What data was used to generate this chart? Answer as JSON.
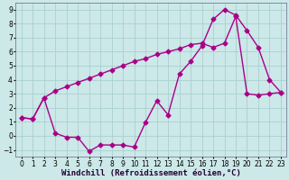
{
  "xlabel": "Windchill (Refroidissement éolien,°C)",
  "background_color": "#cce8e8",
  "grid_color": "#aad0d0",
  "line_color": "#aa0088",
  "xlim": [
    -0.5,
    23.5
  ],
  "ylim": [
    -1.5,
    9.5
  ],
  "xticks": [
    0,
    1,
    2,
    3,
    4,
    5,
    6,
    7,
    8,
    9,
    10,
    11,
    12,
    13,
    14,
    15,
    16,
    17,
    18,
    19,
    20,
    21,
    22,
    23
  ],
  "yticks": [
    -1,
    0,
    1,
    2,
    3,
    4,
    5,
    6,
    7,
    8,
    9
  ],
  "line1_x": [
    0,
    1,
    2,
    3,
    4,
    5,
    6,
    7,
    8,
    9,
    10,
    11,
    12,
    13,
    14,
    15,
    16,
    17,
    18,
    19,
    20,
    21,
    22,
    23
  ],
  "line1_y": [
    1.3,
    1.2,
    2.7,
    0.2,
    -0.1,
    -0.1,
    -1.1,
    -0.65,
    -0.65,
    -0.65,
    -0.8,
    0.95,
    2.5,
    1.5,
    4.4,
    5.3,
    6.4,
    8.3,
    9.0,
    8.6,
    7.5,
    6.3,
    4.0,
    3.1
  ],
  "line2_x": [
    0,
    1,
    2,
    3,
    4,
    5,
    6,
    7,
    8,
    9,
    10,
    11,
    12,
    13,
    14,
    15,
    16,
    17,
    18,
    19,
    20,
    21,
    22,
    23
  ],
  "line2_y": [
    1.3,
    1.2,
    2.7,
    3.2,
    3.5,
    3.8,
    4.1,
    4.4,
    4.7,
    5.0,
    5.3,
    5.5,
    5.8,
    6.0,
    6.2,
    6.5,
    6.6,
    6.3,
    6.6,
    8.5,
    3.0,
    2.9,
    3.0,
    3.1
  ],
  "marker": "D",
  "markersize": 2.5,
  "linewidth": 1.0,
  "tick_fontsize": 5.5,
  "xlabel_fontsize": 6.5
}
